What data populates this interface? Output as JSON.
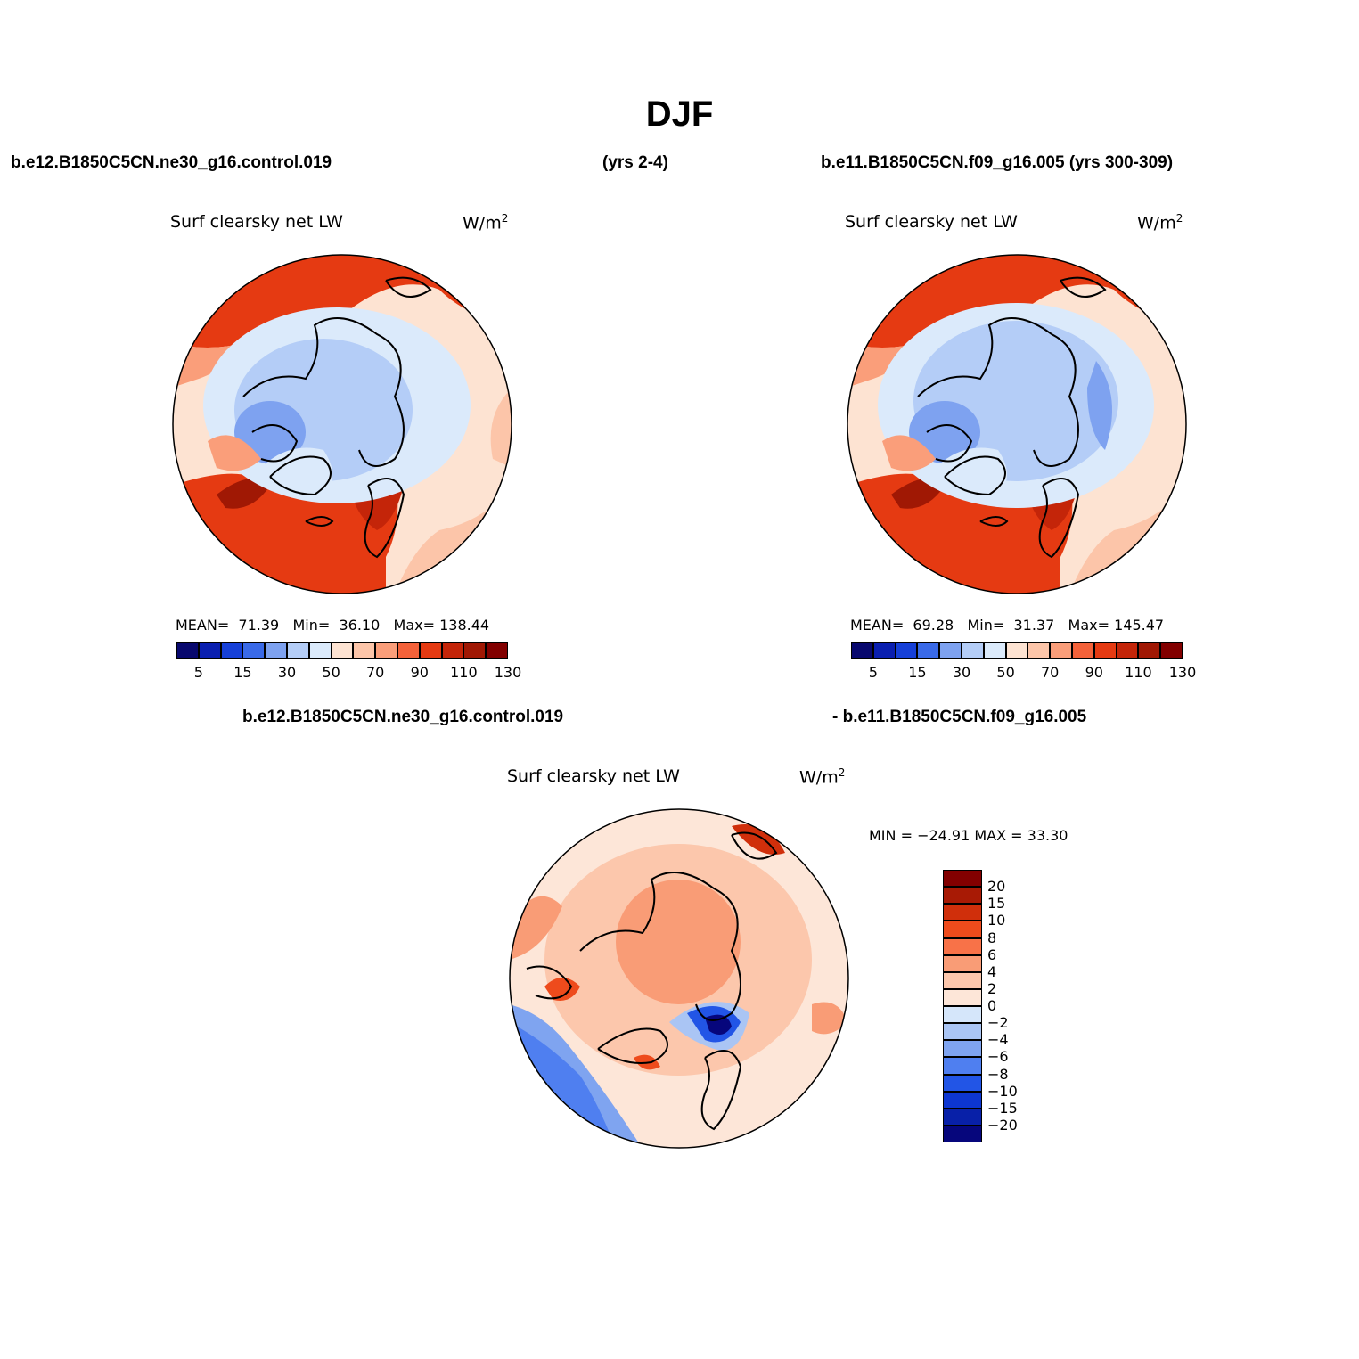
{
  "figure": {
    "title": "DJF",
    "header_left": "b.e12.B1850C5CN.ne30_g16.control.019",
    "header_mid": "(yrs 2-4)",
    "header_right": "b.e11.B1850C5CN.f09_g16.005 (yrs 300-309)",
    "diff_header_left": "b.e12.B1850C5CN.ne30_g16.control.019",
    "diff_header_right": "- b.e11.B1850C5CN.f09_g16.005"
  },
  "panels": [
    {
      "variable": "Surf clearsky net LW",
      "units": "W/m",
      "units_sup": "2",
      "mean_label": "MEAN=",
      "mean": "71.39",
      "min_label": "Min=",
      "min": "36.10",
      "max_label": "Max=",
      "max": "138.44"
    },
    {
      "variable": "Surf clearsky net LW",
      "units": "W/m",
      "units_sup": "2",
      "mean_label": "MEAN=",
      "mean": "69.28",
      "min_label": "Min=",
      "min": "31.37",
      "max_label": "Max=",
      "max": "145.47"
    }
  ],
  "diff_panel": {
    "variable": "Surf clearsky net LW",
    "units": "W/m",
    "units_sup": "2",
    "minmax_text": "MIN = −24.91 MAX =  33.30"
  },
  "colorbar_abs": {
    "colors": [
      "#08086e",
      "#0a1fb0",
      "#1640d8",
      "#3a6ae8",
      "#7ea2f0",
      "#b4cdf7",
      "#dbeafb",
      "#fde3d2",
      "#fcc5a9",
      "#fa9e7a",
      "#f4623a",
      "#e53a12",
      "#c42509",
      "#a01804",
      "#820000"
    ],
    "tick_labels": [
      "5",
      "15",
      "30",
      "50",
      "70",
      "90",
      "110",
      "130"
    ]
  },
  "colorbar_diff": {
    "colors": [
      "#820000",
      "#a81a05",
      "#d02f0b",
      "#ee4b1c",
      "#f87248",
      "#f99c76",
      "#fcc7ac",
      "#fde6d8",
      "#d5e6fa",
      "#aac5f4",
      "#7fa4f0",
      "#4f7ff0",
      "#2255e6",
      "#0d36d1",
      "#0820a8",
      "#06067c"
    ],
    "tick_labels": [
      "20",
      "15",
      "10",
      "8",
      "6",
      "4",
      "2",
      "0",
      "−2",
      "−4",
      "−6",
      "−8",
      "−10",
      "−15",
      "−20"
    ]
  }
}
